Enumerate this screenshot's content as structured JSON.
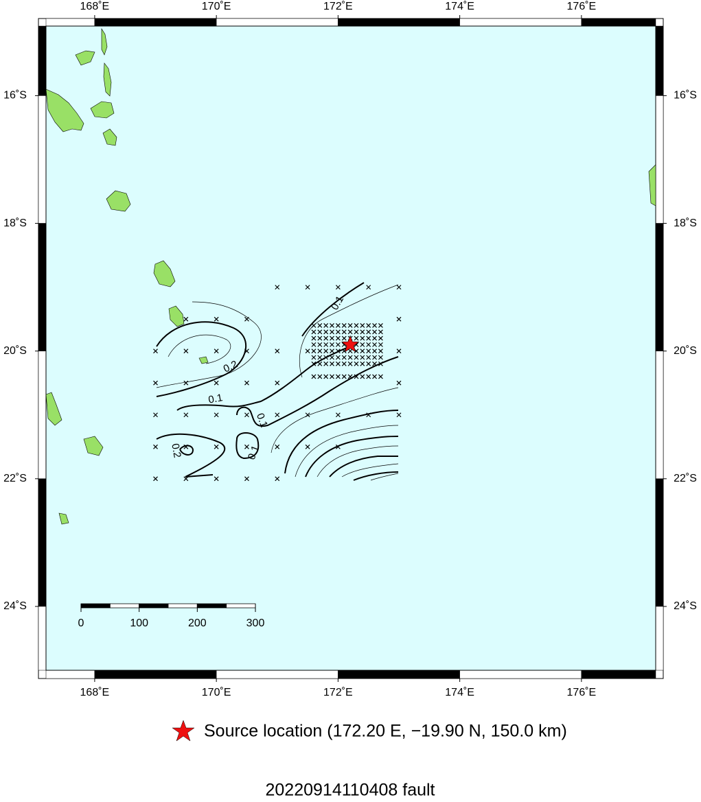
{
  "map": {
    "xlim": [
      167.2,
      177.22
    ],
    "ylim": [
      -25.0,
      -14.91
    ],
    "xticks": [
      {
        "value": 168,
        "label": "168˚E"
      },
      {
        "value": 170,
        "label": "170˚E"
      },
      {
        "value": 172,
        "label": "172˚E"
      },
      {
        "value": 174,
        "label": "174˚E"
      },
      {
        "value": 176,
        "label": "176˚E"
      }
    ],
    "yticks": [
      {
        "value": -16,
        "label": "16˚S"
      },
      {
        "value": -18,
        "label": "18˚S"
      },
      {
        "value": -20,
        "label": "20˚S"
      },
      {
        "value": -22,
        "label": "22˚S"
      },
      {
        "value": -24,
        "label": "24˚S"
      }
    ],
    "water_color": "#dcfdfe",
    "grid_points": {
      "lon": [
        171,
        171.5,
        172,
        172.5,
        173,
        169.5,
        170,
        170.5,
        173,
        169,
        169.5,
        170,
        170.5,
        171,
        171.5,
        173,
        169,
        169.5,
        170,
        170.5,
        171,
        173,
        169,
        169.5,
        170,
        170.5,
        171,
        171.5,
        172,
        172.5,
        173,
        169,
        169.5,
        170,
        170.5,
        171,
        171.5,
        172,
        169,
        169.5,
        170,
        170.5,
        171
      ],
      "lat": [
        -19,
        -19,
        -19,
        -19,
        -19,
        -19.5,
        -19.5,
        -19.5,
        -19.5,
        -20,
        -20,
        -20,
        -20,
        -20,
        -20,
        -20,
        -20.5,
        -20.5,
        -20.5,
        -20.5,
        -20.5,
        -20.5,
        -21,
        -21,
        -21,
        -21,
        -21,
        -21,
        -21,
        -21,
        -21,
        -21.5,
        -21.5,
        -21.5,
        -21.5,
        -21.5,
        -21.5,
        -21.5,
        -22,
        -22,
        -22,
        -22,
        -22
      ]
    },
    "fine_grid": {
      "lon": [
        171.6,
        171.7,
        171.8,
        171.9,
        172,
        172.1,
        172.2,
        172.3,
        172.4,
        172.5,
        172.6,
        172.7
      ],
      "lat": [
        -19.6,
        -19.7,
        -19.8,
        -19.9,
        -20,
        -20.1,
        -20.2,
        -20.4
      ]
    },
    "contour_labels": [
      0.1,
      0.2,
      0.1,
      0.1,
      0.2,
      0.1
    ],
    "source": {
      "lon": 172.2,
      "lat": -19.9,
      "color": "#ee1111"
    },
    "scale_bar": {
      "ticks": [
        0,
        100,
        200,
        300
      ]
    },
    "legend": "Source location (172.20 E, −19.90 N, 150.0 km)",
    "title": "20220914110408 fault"
  }
}
